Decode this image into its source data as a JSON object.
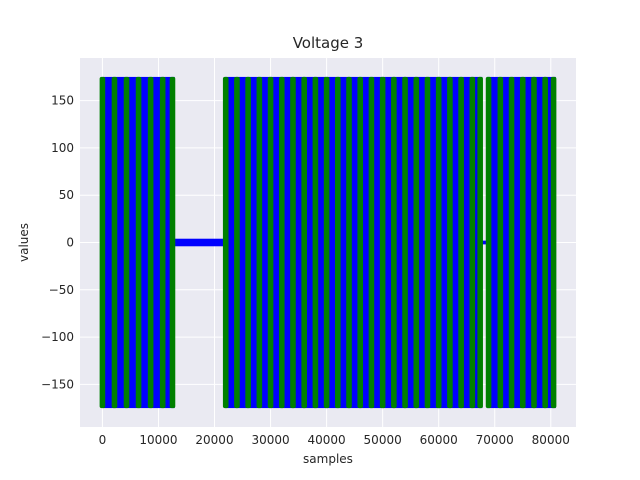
{
  "chart_data": {
    "type": "line",
    "title": "Voltage 3",
    "xlabel": "samples",
    "ylabel": "values",
    "xlim": [
      -4000,
      84500
    ],
    "ylim": [
      -195,
      195
    ],
    "x_ticks": [
      0,
      10000,
      20000,
      30000,
      40000,
      50000,
      60000,
      70000,
      80000
    ],
    "y_ticks": [
      -150,
      -100,
      -50,
      0,
      50,
      100,
      150
    ],
    "grid": true,
    "background": "#eaeaf2",
    "series": [
      {
        "color": "#0000ff",
        "style": "oscillating-band"
      },
      {
        "color": "#008000",
        "style": "peak-markers"
      }
    ],
    "segments": [
      {
        "kind": "oscillating",
        "x_start": 0,
        "x_end": 12900,
        "amplitude": 175
      },
      {
        "kind": "flat",
        "x_start": 12900,
        "x_end": 21900,
        "amplitude": 4
      },
      {
        "kind": "oscillating",
        "x_start": 21900,
        "x_end": 67800,
        "amplitude": 175
      },
      {
        "kind": "flat",
        "x_start": 67800,
        "x_end": 68600,
        "amplitude": 2
      },
      {
        "kind": "oscillating",
        "x_start": 68600,
        "x_end": 80900,
        "amplitude": 175
      }
    ],
    "green_bar_x": [
      0,
      2150,
      4300,
      6450,
      8600,
      10750,
      12500,
      22000,
      24000,
      26000,
      28000,
      30000,
      32000,
      34000,
      36000,
      38000,
      40000,
      42000,
      44000,
      46000,
      48000,
      50000,
      52000,
      54000,
      56000,
      58000,
      60000,
      62000,
      64000,
      66000,
      67400,
      68900,
      71000,
      73000,
      75000,
      77000,
      79000,
      80500
    ]
  }
}
